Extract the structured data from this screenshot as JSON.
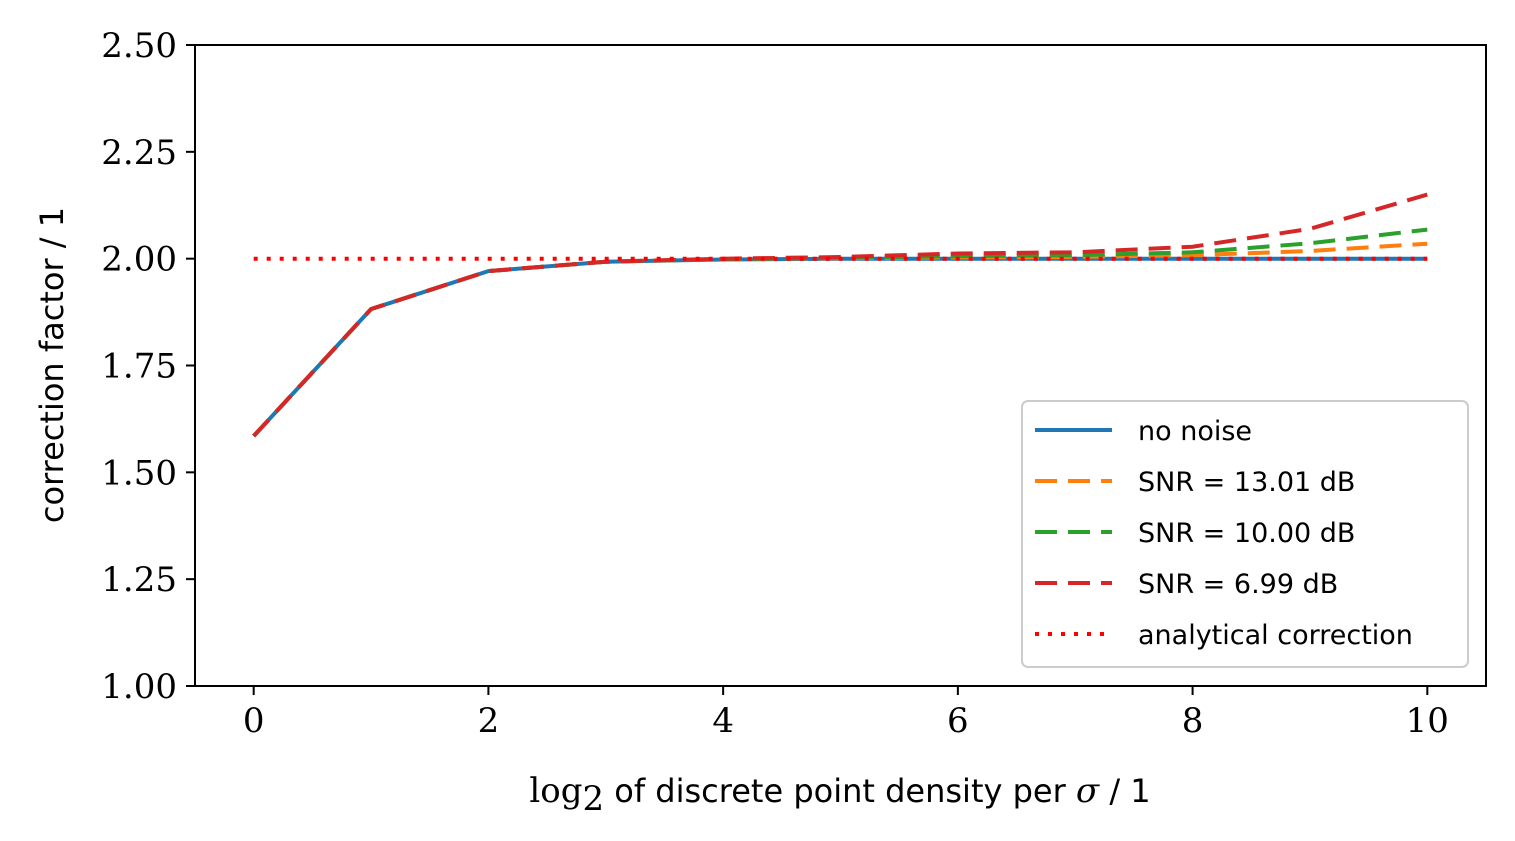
{
  "chart_data": {
    "type": "line",
    "xlabel_parts": {
      "math": "log",
      "subscript": "2",
      "middle": " of discrete point density per ",
      "sigma": "σ",
      "tail": " / 1"
    },
    "ylabel": "correction factor / 1",
    "xlim": [
      -0.5,
      10.5
    ],
    "ylim": [
      1.0,
      2.5
    ],
    "xticks": [
      0,
      2,
      4,
      6,
      8,
      10
    ],
    "xtick_labels": [
      "0",
      "2",
      "4",
      "6",
      "8",
      "10"
    ],
    "yticks": [
      1.0,
      1.25,
      1.5,
      1.75,
      2.0,
      2.25,
      2.5
    ],
    "ytick_labels": [
      "1.00",
      "1.25",
      "1.50",
      "1.75",
      "2.00",
      "2.25",
      "2.50"
    ],
    "grid": false,
    "legend_position": "lower-right",
    "x": [
      0,
      1,
      2,
      3,
      4,
      5,
      6,
      7,
      8,
      9,
      10
    ],
    "series": [
      {
        "name": "no noise",
        "color": "#1f77b4",
        "style": "solid",
        "values": [
          1.585,
          1.882,
          1.971,
          1.993,
          1.998,
          2.0,
          2.0,
          2.0,
          2.0,
          2.0,
          2.0
        ]
      },
      {
        "name": "SNR = 13.01 dB",
        "color": "#ff7f0e",
        "style": "dashed",
        "values": [
          1.585,
          1.882,
          1.971,
          1.993,
          1.999,
          2.001,
          2.003,
          2.004,
          2.008,
          2.018,
          2.035
        ]
      },
      {
        "name": "SNR = 10.00 dB",
        "color": "#2ca02c",
        "style": "dashed",
        "values": [
          1.585,
          1.882,
          1.971,
          1.993,
          1.999,
          2.002,
          2.006,
          2.008,
          2.015,
          2.036,
          2.068
        ]
      },
      {
        "name": "SNR = 6.99 dB",
        "color": "#d62728",
        "style": "dashed",
        "values": [
          1.585,
          1.882,
          1.971,
          1.993,
          2.0,
          2.004,
          2.012,
          2.015,
          2.028,
          2.07,
          2.15
        ]
      },
      {
        "name": "analytical correction",
        "color": "#ff0000",
        "style": "dotted",
        "values": [
          2.0,
          2.0,
          2.0,
          2.0,
          2.0,
          2.0,
          2.0,
          2.0,
          2.0,
          2.0,
          2.0
        ]
      }
    ]
  }
}
